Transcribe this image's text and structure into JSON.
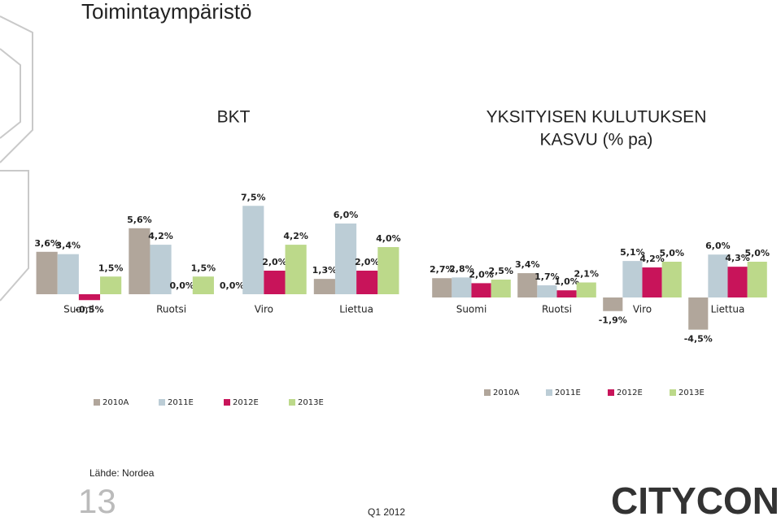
{
  "title": "Toimintaympäristö",
  "source": "Lähde: Nordea",
  "page_number": "13",
  "footer": "Q1 2012",
  "logo": "CITYCON",
  "chart_data": [
    {
      "type": "bar",
      "title": [
        "BKT"
      ],
      "categories": [
        "Suomi",
        "Ruotsi",
        "Viro",
        "Liettua"
      ],
      "ylim": [
        -1,
        8
      ],
      "series": [
        {
          "name": "2010A",
          "color": "#b1a69b",
          "values": [
            3.6,
            5.6,
            0.0,
            1.3
          ],
          "value_labels": [
            "3,6%",
            "5,6%",
            "0,0%",
            "1,3%"
          ]
        },
        {
          "name": "2011E",
          "color": "#bccdd6",
          "values": [
            3.4,
            4.2,
            7.5,
            6.0
          ],
          "value_labels": [
            "3,4%",
            "4,2%",
            "7,5%",
            "6,0%"
          ]
        },
        {
          "name": "2012E",
          "color": "#c8145a",
          "values": [
            -0.5,
            0.0,
            2.0,
            2.0
          ],
          "value_labels": [
            "-0,5%",
            "0,0%",
            "2,0%",
            "2,0%"
          ]
        },
        {
          "name": "2013E",
          "color": "#bcd98a",
          "values": [
            1.5,
            1.5,
            4.2,
            4.0
          ],
          "value_labels": [
            "1,5%",
            "1,5%",
            "4,2%",
            "4,0%"
          ]
        }
      ]
    },
    {
      "type": "bar",
      "title": [
        "YKSITYISEN KULUTUKSEN",
        "KASVU (% pa)"
      ],
      "categories": [
        "Suomi",
        "Ruotsi",
        "Viro",
        "Liettua"
      ],
      "ylim": [
        -5,
        7
      ],
      "series": [
        {
          "name": "2010A",
          "color": "#b1a69b",
          "values": [
            2.7,
            3.4,
            -1.9,
            -4.5
          ],
          "value_labels": [
            "2,7%",
            "3,4%",
            "-1,9%",
            "-4,5%"
          ]
        },
        {
          "name": "2011E",
          "color": "#bccdd6",
          "values": [
            2.8,
            1.7,
            5.1,
            6.0
          ],
          "value_labels": [
            "2,8%",
            "1,7%",
            "5,1%",
            "6,0%"
          ]
        },
        {
          "name": "2012E",
          "color": "#c8145a",
          "values": [
            2.0,
            1.0,
            4.2,
            4.3
          ],
          "value_labels": [
            "2,0%",
            "1,0%",
            "4,2%",
            "4,3%"
          ]
        },
        {
          "name": "2013E",
          "color": "#bcd98a",
          "values": [
            2.5,
            2.1,
            5.0,
            5.0
          ],
          "value_labels": [
            "2,5%",
            "2,1%",
            "5,0%",
            "5,0%"
          ]
        }
      ]
    }
  ]
}
